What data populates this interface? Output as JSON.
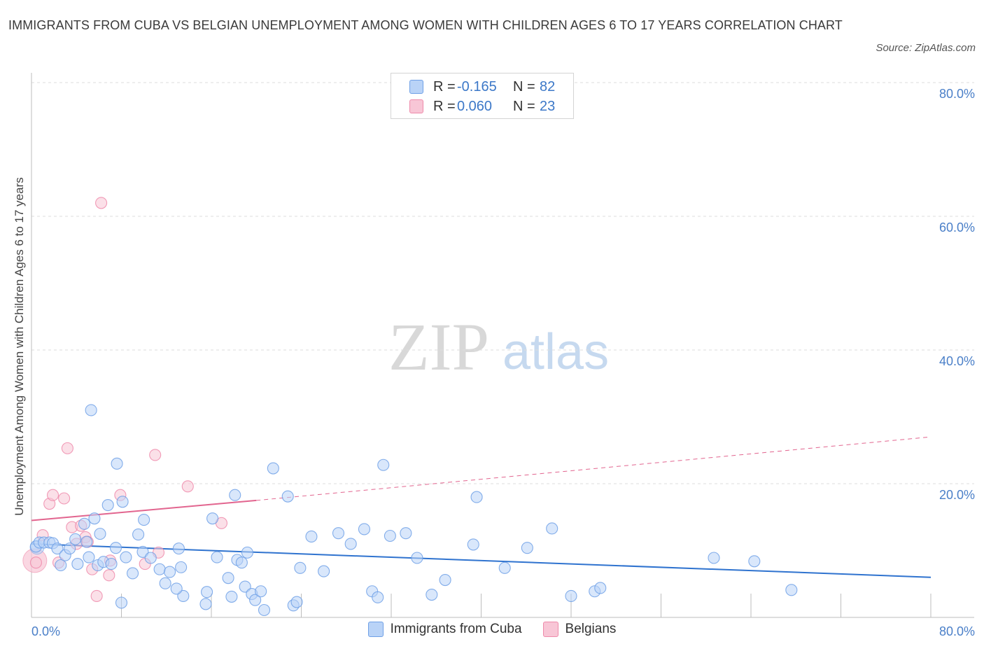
{
  "chart_data": {
    "type": "scatter",
    "title": "IMMIGRANTS FROM CUBA VS BELGIAN UNEMPLOYMENT AMONG WOMEN WITH CHILDREN AGES 6 TO 17 YEARS CORRELATION CHART",
    "source": "Source: ZipAtlas.com",
    "ylabel": "Unemployment Among Women with Children Ages 6 to 17 years",
    "xlabel": "",
    "xlim": [
      0,
      80
    ],
    "ylim": [
      0,
      80
    ],
    "x_tick_labels": [
      "0.0%",
      "80.0%"
    ],
    "y_ticks": [
      20,
      40,
      60,
      80
    ],
    "y_tick_labels": [
      "20.0%",
      "40.0%",
      "60.0%",
      "80.0%"
    ],
    "colors": {
      "cuba": "#6fa0e6",
      "cuba_fill": "#b9d3f7",
      "cuba_line": "#2f73cf",
      "belg": "#ee8aaa",
      "belg_fill": "#f8c6d6",
      "belg_line": "#e2658f",
      "tick": "#4a7fc8"
    },
    "legend": [
      {
        "r_label": "R =",
        "r_value": "-0.165",
        "n_label": "N =",
        "n_value": "82"
      },
      {
        "r_label": "R =",
        "r_value": "0.060",
        "n_label": "N =",
        "n_value": "23"
      }
    ],
    "series": [
      {
        "name": "Immigrants from Cuba",
        "trend": {
          "x0": 0,
          "y0": 11.0,
          "x1": 80,
          "y1": 6.0
        },
        "points": [
          [
            0.4,
            10.6
          ],
          [
            0.7,
            11.2
          ],
          [
            1.1,
            11.2
          ],
          [
            1.6,
            11.2
          ],
          [
            1.9,
            11.1
          ],
          [
            2.3,
            10.3
          ],
          [
            2.6,
            7.8
          ],
          [
            3.0,
            9.3
          ],
          [
            3.4,
            10.3
          ],
          [
            3.9,
            11.7
          ],
          [
            4.1,
            8.0
          ],
          [
            4.7,
            14.0
          ],
          [
            4.9,
            11.3
          ],
          [
            5.1,
            9.0
          ],
          [
            5.3,
            31.0
          ],
          [
            5.9,
            7.8
          ],
          [
            6.1,
            12.5
          ],
          [
            6.4,
            8.3
          ],
          [
            6.8,
            16.8
          ],
          [
            7.1,
            8.0
          ],
          [
            7.5,
            10.4
          ],
          [
            7.6,
            23.0
          ],
          [
            8.0,
            2.2
          ],
          [
            8.1,
            17.3
          ],
          [
            8.4,
            9.0
          ],
          [
            9.0,
            6.6
          ],
          [
            9.5,
            12.4
          ],
          [
            9.9,
            9.8
          ],
          [
            10.0,
            14.6
          ],
          [
            10.6,
            8.9
          ],
          [
            11.4,
            7.2
          ],
          [
            11.9,
            5.1
          ],
          [
            12.3,
            6.8
          ],
          [
            13.1,
            10.3
          ],
          [
            13.3,
            7.5
          ],
          [
            13.5,
            3.2
          ],
          [
            15.5,
            2.0
          ],
          [
            15.6,
            3.8
          ],
          [
            16.1,
            14.8
          ],
          [
            16.5,
            9.0
          ],
          [
            17.5,
            5.9
          ],
          [
            17.8,
            3.1
          ],
          [
            18.1,
            18.3
          ],
          [
            18.3,
            8.6
          ],
          [
            18.7,
            8.2
          ],
          [
            19.0,
            4.6
          ],
          [
            19.2,
            9.7
          ],
          [
            19.6,
            3.5
          ],
          [
            19.9,
            2.6
          ],
          [
            20.4,
            3.9
          ],
          [
            20.7,
            1.1
          ],
          [
            21.5,
            22.3
          ],
          [
            22.8,
            18.1
          ],
          [
            23.3,
            1.8
          ],
          [
            23.6,
            2.3
          ],
          [
            23.9,
            7.4
          ],
          [
            24.9,
            12.1
          ],
          [
            27.3,
            12.6
          ],
          [
            28.4,
            11.0
          ],
          [
            29.6,
            13.2
          ],
          [
            30.3,
            3.9
          ],
          [
            30.8,
            3.0
          ],
          [
            31.3,
            22.8
          ],
          [
            31.9,
            12.2
          ],
          [
            33.3,
            12.6
          ],
          [
            34.3,
            8.9
          ],
          [
            35.6,
            3.4
          ],
          [
            39.3,
            10.9
          ],
          [
            39.6,
            18.0
          ],
          [
            42.1,
            7.4
          ],
          [
            44.1,
            10.4
          ],
          [
            46.3,
            13.3
          ],
          [
            48.0,
            3.2
          ],
          [
            50.1,
            3.9
          ],
          [
            50.6,
            4.4
          ],
          [
            60.7,
            8.9
          ],
          [
            64.3,
            8.4
          ],
          [
            67.6,
            4.1
          ],
          [
            5.6,
            14.8
          ],
          [
            12.9,
            4.3
          ],
          [
            26.0,
            6.9
          ],
          [
            36.8,
            5.6
          ]
        ]
      },
      {
        "name": "Belgians",
        "trend": {
          "x0": 0,
          "y0": 14.5,
          "x1": 20,
          "y1": 17.5,
          "dash_x1": 80,
          "dash_y1": 27.0
        },
        "points": [
          [
            0.4,
            8.2
          ],
          [
            1.0,
            12.3
          ],
          [
            1.6,
            17.0
          ],
          [
            1.9,
            18.3
          ],
          [
            2.4,
            8.2
          ],
          [
            2.9,
            17.8
          ],
          [
            3.2,
            25.3
          ],
          [
            3.6,
            13.5
          ],
          [
            4.0,
            11.0
          ],
          [
            4.4,
            13.7
          ],
          [
            4.8,
            12.0
          ],
          [
            5.4,
            7.2
          ],
          [
            5.8,
            3.2
          ],
          [
            6.2,
            62.0
          ],
          [
            6.9,
            6.3
          ],
          [
            7.0,
            8.5
          ],
          [
            7.9,
            18.3
          ],
          [
            10.1,
            8.0
          ],
          [
            11.0,
            24.3
          ],
          [
            11.3,
            9.7
          ],
          [
            13.9,
            19.6
          ],
          [
            16.9,
            14.1
          ],
          [
            5.0,
            11.3
          ]
        ]
      }
    ]
  }
}
